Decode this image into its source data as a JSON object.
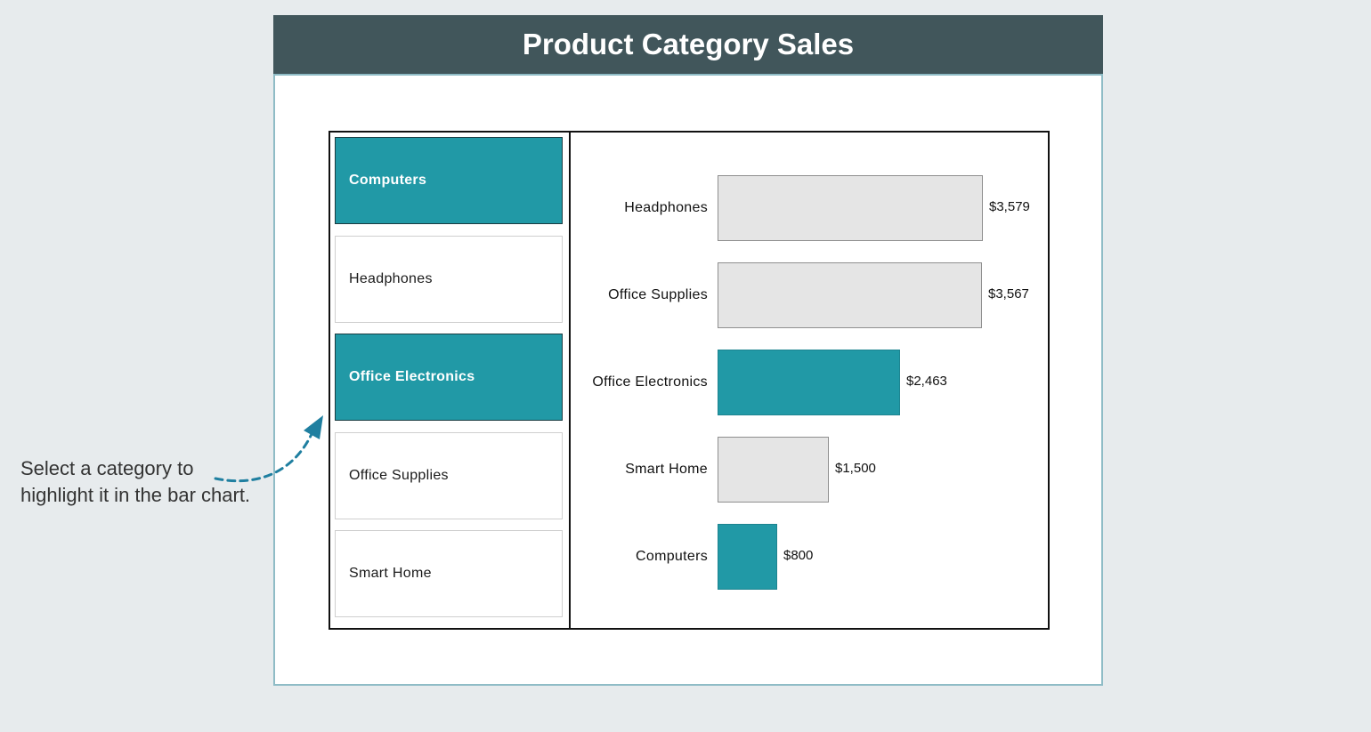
{
  "title": "Product Category Sales",
  "note": {
    "line1": "Select a category to",
    "line2": "highlight it in the bar chart."
  },
  "colors": {
    "header_bg": "#41565b",
    "accent": "#2199a6",
    "bar_inactive": "#e5e5e5",
    "panel_border": "#8fbcc6",
    "page_bg": "#e7ebed"
  },
  "slicer": {
    "items": [
      {
        "label": "Computers",
        "selected": true
      },
      {
        "label": "Headphones",
        "selected": false
      },
      {
        "label": "Office Electronics",
        "selected": true
      },
      {
        "label": "Office Supplies",
        "selected": false
      },
      {
        "label": "Smart Home",
        "selected": false
      }
    ]
  },
  "chart_data": {
    "type": "bar",
    "orientation": "horizontal",
    "categories": [
      "Headphones",
      "Office Supplies",
      "Office Electronics",
      "Smart Home",
      "Computers"
    ],
    "values": [
      3579,
      3567,
      2463,
      1500,
      800
    ],
    "value_labels": [
      "$3,579",
      "$3,567",
      "$2,463",
      "$1,500",
      "$800"
    ],
    "highlighted": [
      "Office Electronics",
      "Computers"
    ],
    "xlim": [
      0,
      3579
    ],
    "grid": false
  }
}
